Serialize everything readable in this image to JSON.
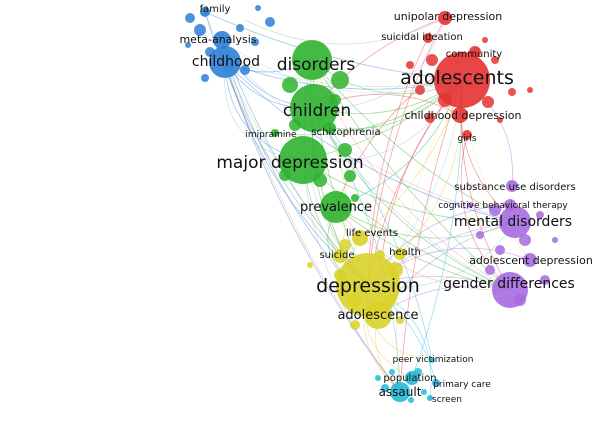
{
  "colors": {
    "red": "#e63232",
    "green": "#2fb32f",
    "blue": "#2f7fd8",
    "yellow": "#d9d12a",
    "purple": "#a66be0",
    "cyan": "#22b8d8"
  },
  "nodes": [
    {
      "id": "family",
      "label": "family",
      "cluster": "blue",
      "weight": 2
    },
    {
      "id": "meta-analysis",
      "label": "meta-analysis",
      "cluster": "blue",
      "weight": 3
    },
    {
      "id": "childhood",
      "label": "childhood",
      "cluster": "blue",
      "weight": 6
    },
    {
      "id": "disorders",
      "label": "disorders",
      "cluster": "green",
      "weight": 9
    },
    {
      "id": "children",
      "label": "children",
      "cluster": "green",
      "weight": 9
    },
    {
      "id": "imipramine",
      "label": "imipramine",
      "cluster": "green",
      "weight": 2
    },
    {
      "id": "schizophrenia",
      "label": "schizophrenia",
      "cluster": "green",
      "weight": 3
    },
    {
      "id": "major-depression",
      "label": "major depression",
      "cluster": "green",
      "weight": 10
    },
    {
      "id": "prevalence",
      "label": "prevalence",
      "cluster": "green",
      "weight": 6
    },
    {
      "id": "unipolar-depression",
      "label": "unipolar depression",
      "cluster": "red",
      "weight": 3
    },
    {
      "id": "suicidal-ideation",
      "label": "suicidal ideation",
      "cluster": "red",
      "weight": 2
    },
    {
      "id": "community",
      "label": "community",
      "cluster": "red",
      "weight": 2
    },
    {
      "id": "adolescents",
      "label": "adolescents",
      "cluster": "red",
      "weight": 10
    },
    {
      "id": "childhood-depression",
      "label": "childhood depression",
      "cluster": "red",
      "weight": 3
    },
    {
      "id": "girls",
      "label": "girls",
      "cluster": "red",
      "weight": 2
    },
    {
      "id": "substance-use-disorders",
      "label": "substance use disorders",
      "cluster": "purple",
      "weight": 2
    },
    {
      "id": "cognitive-behavioral-therapy",
      "label": "cognitive behavioral therapy",
      "cluster": "purple",
      "weight": 2
    },
    {
      "id": "mental-disorders",
      "label": "mental disorders",
      "cluster": "purple",
      "weight": 6
    },
    {
      "id": "adolescent-depression",
      "label": "adolescent depression",
      "cluster": "purple",
      "weight": 3
    },
    {
      "id": "gender-differences",
      "label": "gender differences",
      "cluster": "purple",
      "weight": 6
    },
    {
      "id": "life-events",
      "label": "life events",
      "cluster": "yellow",
      "weight": 3
    },
    {
      "id": "suicide",
      "label": "suicide",
      "cluster": "yellow",
      "weight": 3
    },
    {
      "id": "health",
      "label": "health",
      "cluster": "yellow",
      "weight": 3
    },
    {
      "id": "depression",
      "label": "depression",
      "cluster": "yellow",
      "weight": 10
    },
    {
      "id": "adolescence",
      "label": "adolescence",
      "cluster": "yellow",
      "weight": 6
    },
    {
      "id": "peer-victimization",
      "label": "peer victimization",
      "cluster": "cyan",
      "weight": 2
    },
    {
      "id": "population",
      "label": "population",
      "cluster": "cyan",
      "weight": 3
    },
    {
      "id": "primary-care",
      "label": "primary care",
      "cluster": "cyan",
      "weight": 2
    },
    {
      "id": "assault",
      "label": "assault",
      "cluster": "cyan",
      "weight": 4
    },
    {
      "id": "screen",
      "label": "screen",
      "cluster": "cyan",
      "weight": 2
    }
  ],
  "edges": [
    [
      "childhood",
      "disorders"
    ],
    [
      "childhood",
      "children"
    ],
    [
      "childhood",
      "adolescents"
    ],
    [
      "childhood",
      "depression"
    ],
    [
      "childhood",
      "major-depression"
    ],
    [
      "family",
      "adolescents"
    ],
    [
      "meta-analysis",
      "depression"
    ],
    [
      "meta-analysis",
      "children"
    ],
    [
      "family",
      "depression"
    ],
    [
      "disorders",
      "adolescents"
    ],
    [
      "disorders",
      "depression"
    ],
    [
      "disorders",
      "mental-disorders"
    ],
    [
      "children",
      "adolescents"
    ],
    [
      "children",
      "depression"
    ],
    [
      "children",
      "gender-differences"
    ],
    [
      "major-depression",
      "adolescents"
    ],
    [
      "major-depression",
      "depression"
    ],
    [
      "major-depression",
      "mental-disorders"
    ],
    [
      "prevalence",
      "adolescents"
    ],
    [
      "prevalence",
      "depression"
    ],
    [
      "prevalence",
      "gender-differences"
    ],
    [
      "adolescents",
      "depression"
    ],
    [
      "adolescents",
      "gender-differences"
    ],
    [
      "adolescents",
      "mental-disorders"
    ],
    [
      "adolescents",
      "adolescence"
    ],
    [
      "adolescents",
      "assault"
    ],
    [
      "unipolar-depression",
      "depression"
    ],
    [
      "childhood-depression",
      "children"
    ],
    [
      "community",
      "prevalence"
    ],
    [
      "girls",
      "gender-differences"
    ],
    [
      "mental-disorders",
      "depression"
    ],
    [
      "mental-disorders",
      "adolescence"
    ],
    [
      "substance-use-disorders",
      "adolescents"
    ],
    [
      "cognitive-behavioral-therapy",
      "depression"
    ],
    [
      "adolescent-depression",
      "depression"
    ],
    [
      "gender-differences",
      "depression"
    ],
    [
      "gender-differences",
      "adolescence"
    ],
    [
      "depression",
      "assault"
    ],
    [
      "depression",
      "population"
    ],
    [
      "depression",
      "peer-victimization"
    ],
    [
      "adolescence",
      "assault"
    ],
    [
      "life-events",
      "adolescents"
    ],
    [
      "suicide",
      "children"
    ],
    [
      "health",
      "adolescents"
    ],
    [
      "screen",
      "depression"
    ],
    [
      "primary-care",
      "depression"
    ],
    [
      "population",
      "adolescents"
    ],
    [
      "peer-victimization",
      "children"
    ],
    [
      "assault",
      "children"
    ],
    [
      "childhood",
      "mental-disorders"
    ],
    [
      "disorders",
      "gender-differences"
    ],
    [
      "major-depression",
      "gender-differences"
    ],
    [
      "childhood",
      "assault"
    ],
    [
      "meta-analysis",
      "adolescence"
    ],
    [
      "disorders",
      "adolescence"
    ],
    [
      "unipolar-depression",
      "children"
    ],
    [
      "suicidal-ideation",
      "depression"
    ],
    [
      "schizophrenia",
      "adolescents"
    ],
    [
      "imipramine",
      "adolescents"
    ],
    [
      "prevalence",
      "mental-disorders"
    ],
    [
      "life-events",
      "depression"
    ]
  ]
}
